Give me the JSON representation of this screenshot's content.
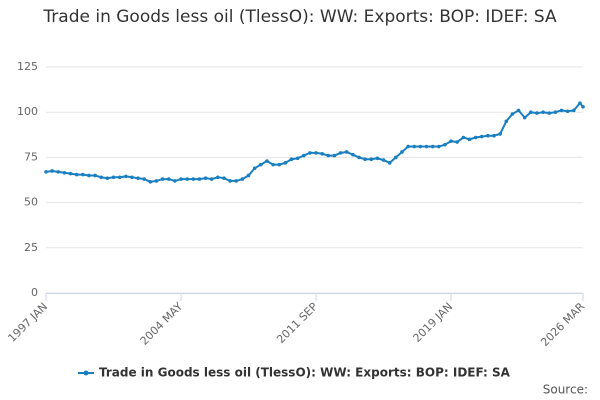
{
  "chart_data": {
    "type": "line",
    "title": "Trade in Goods less oil (TlessO): WW: Exports: BOP: IDEF: SA",
    "source": "Source:",
    "x": [
      "1997 JAN",
      "1997 MAY",
      "1997 SEP",
      "1998 JAN",
      "1998 MAY",
      "1998 SEP",
      "1999 JAN",
      "1999 MAY",
      "1999 SEP",
      "2000 JAN",
      "2000 MAY",
      "2000 SEP",
      "2001 JAN",
      "2001 MAY",
      "2001 SEP",
      "2002 JAN",
      "2002 MAY",
      "2002 SEP",
      "2003 JAN",
      "2003 MAY",
      "2003 SEP",
      "2004 JAN",
      "2004 MAY",
      "2004 SEP",
      "2005 JAN",
      "2005 MAY",
      "2005 SEP",
      "2006 JAN",
      "2006 MAY",
      "2006 SEP",
      "2007 JAN",
      "2007 MAY",
      "2007 SEP",
      "2008 JAN",
      "2008 MAY",
      "2008 SEP",
      "2009 JAN",
      "2009 MAY",
      "2009 SEP",
      "2010 JAN",
      "2010 MAY",
      "2010 SEP",
      "2011 JAN",
      "2011 MAY",
      "2011 SEP",
      "2012 JAN",
      "2012 MAY",
      "2012 SEP",
      "2013 JAN",
      "2013 MAY",
      "2013 SEP",
      "2014 JAN",
      "2014 MAY",
      "2014 SEP",
      "2015 JAN",
      "2015 MAY",
      "2015 SEP",
      "2016 JAN",
      "2016 MAY",
      "2016 SEP",
      "2017 JAN",
      "2017 MAY",
      "2017 SEP",
      "2018 JAN",
      "2018 MAY",
      "2018 SEP",
      "2019 JAN",
      "2019 MAY",
      "2019 SEP",
      "2020 JAN",
      "2020 MAY",
      "2020 SEP",
      "2021 JAN",
      "2021 MAY",
      "2021 SEP",
      "2022 JAN",
      "2022 MAY",
      "2022 SEP",
      "2023 JAN",
      "2023 MAY",
      "2023 SEP",
      "2024 JAN",
      "2024 MAY",
      "2024 SEP",
      "2025 JAN",
      "2025 MAY",
      "2025 SEP",
      "2026 JAN",
      "2026 MAR"
    ],
    "series": [
      {
        "name": "Trade in Goods less oil (TlessO): WW: Exports: BOP: IDEF: SA",
        "color": "#1a7fc1",
        "values": [
          67,
          67.5,
          67,
          66.5,
          66,
          65.5,
          65.5,
          65,
          65,
          64,
          63.5,
          64,
          64,
          64.5,
          64,
          63.5,
          63,
          61.5,
          62,
          63,
          63,
          62,
          63,
          63,
          63,
          63,
          63.5,
          63,
          64,
          63.5,
          62,
          62,
          63,
          65,
          69,
          71,
          73,
          71,
          71,
          72,
          74,
          74.5,
          76,
          77.5,
          77.5,
          77,
          76,
          76,
          77.5,
          78,
          76.5,
          75,
          74,
          74,
          74.5,
          73.5,
          72,
          75,
          78,
          81,
          81,
          81,
          81,
          81,
          81,
          82,
          84,
          83.5,
          86,
          85,
          86,
          86.5,
          87,
          87,
          88,
          95,
          99,
          101,
          97,
          100,
          99.5,
          100,
          99.5,
          100,
          101,
          100.5,
          101,
          105,
          103
        ]
      }
    ],
    "xticks": [
      "1997 JAN",
      "2004 MAY",
      "2011 SEP",
      "2019 JAN",
      "2026 MAR"
    ],
    "ylim": [
      0,
      125
    ],
    "yticks": [
      0,
      25,
      50,
      75,
      100,
      125
    ],
    "grid": true
  }
}
